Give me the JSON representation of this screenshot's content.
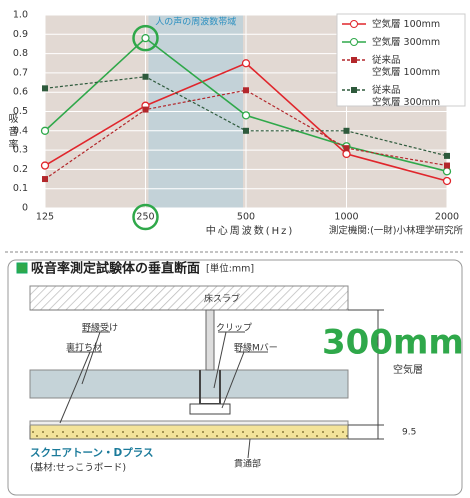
{
  "chart_data": {
    "type": "line",
    "x_label": "中心周波数(Hz)",
    "y_label": "吸音率",
    "source": "測定機関:(一財)小林理学研究所",
    "band_label": "人の声の周波数帯域",
    "categories": [
      "125",
      "250",
      "500",
      "1000",
      "2000"
    ],
    "ylim": [
      0,
      1
    ],
    "yticks": [
      0,
      0.1,
      0.2,
      0.3,
      0.4,
      0.5,
      0.6,
      0.7,
      0.8,
      0.9,
      {
        "value": 1,
        "label": "1.0"
      }
    ],
    "grid": true,
    "legend": "top-right",
    "series": [
      {
        "name": "空気層 100mm",
        "color": "#e0262c",
        "dash": false,
        "marker": "circle",
        "values": [
          0.22,
          0.53,
          0.75,
          0.28,
          0.14
        ]
      },
      {
        "name": "空気層 300mm",
        "color": "#2fa84a",
        "dash": false,
        "marker": "circle",
        "values": [
          0.4,
          0.88,
          0.48,
          0.32,
          0.19
        ]
      },
      {
        "name": "従来品\n空気層 100mm",
        "color": "#b3272b",
        "dash": true,
        "marker": "square",
        "values": [
          0.15,
          0.51,
          0.61,
          0.31,
          0.22
        ]
      },
      {
        "name": "従来品\n空気層 300mm",
        "color": "#2e5a3c",
        "dash": true,
        "marker": "square",
        "values": [
          0.62,
          0.68,
          0.4,
          0.4,
          0.27
        ]
      }
    ]
  },
  "diagram": {
    "title": "吸音率測定試験体の垂直断面",
    "unit": "[単位:mm]",
    "labels": {
      "slab": "床スラブ",
      "hanger": "野縁受け",
      "clip": "クリップ",
      "backing": "裏打ち材",
      "bar": "野縁Mバー",
      "air_depth": "300mm",
      "air": "空気層",
      "thickness": "9.5",
      "product": "スクエアトーン・Dプラス",
      "base": "(基材:せっこうボード)",
      "through": "貫通部"
    }
  }
}
